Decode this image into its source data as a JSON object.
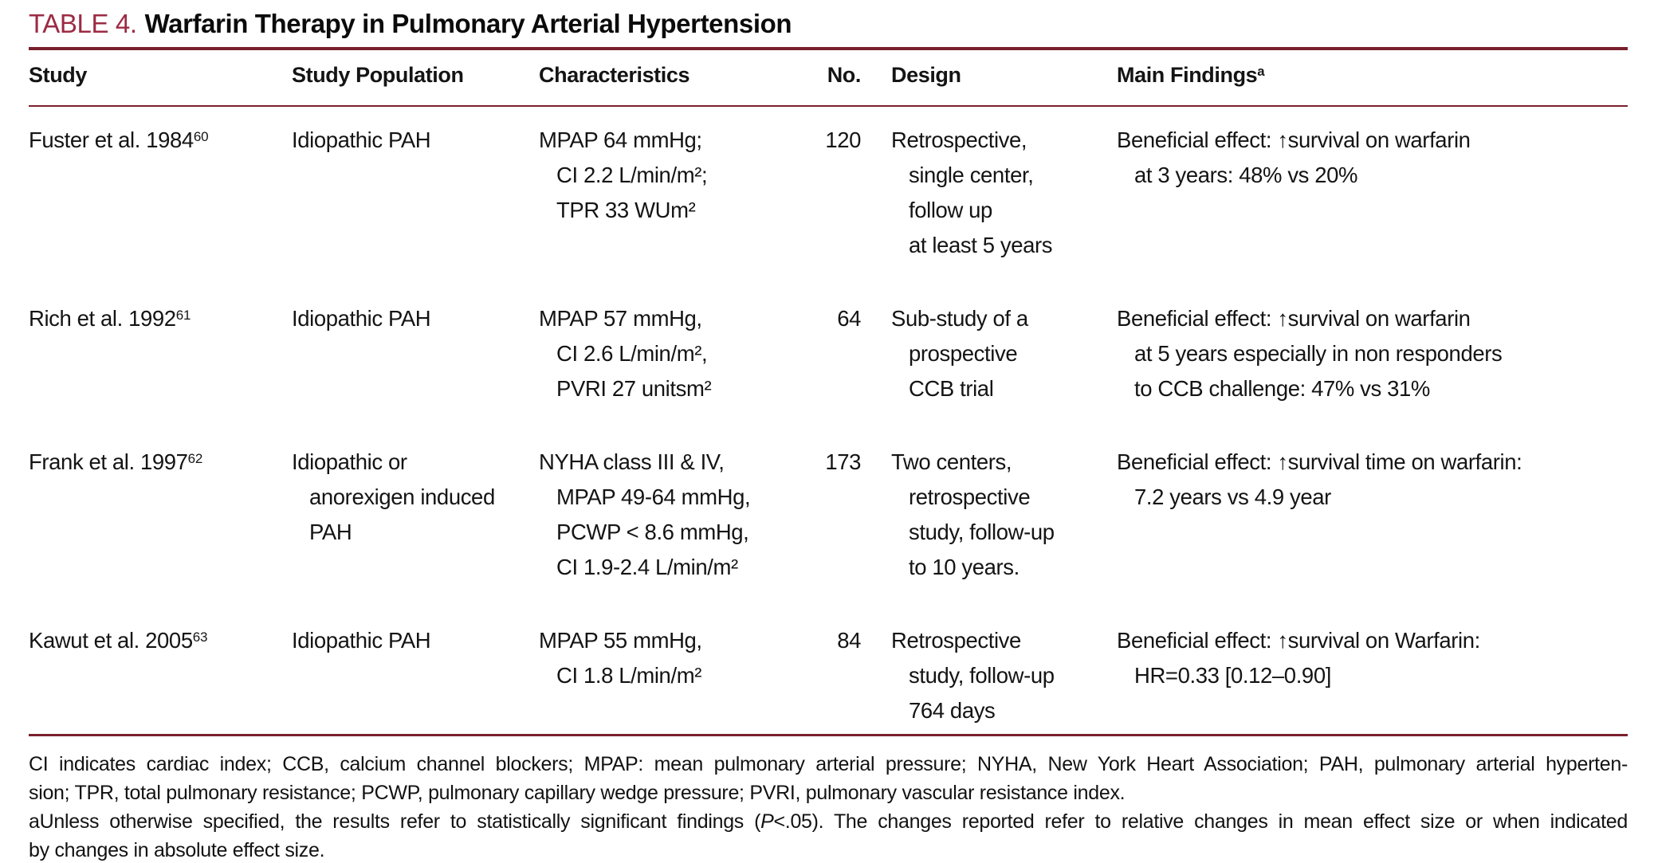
{
  "title": {
    "label": "TABLE 4.",
    "text": "Warfarin Therapy in Pulmonary Arterial Hypertension"
  },
  "colors": {
    "accent_title": "#9c2b43",
    "rule": "#7a1f2d",
    "text": "#141414"
  },
  "table": {
    "headers": {
      "study": "Study",
      "population": "Study Population",
      "characteristics": "Characteristics",
      "no": "No.",
      "design": "Design",
      "findings": "Main Findings",
      "findings_sup": "a"
    },
    "rows": [
      {
        "study": "Fuster et al. 1984",
        "ref": "60",
        "population": [
          "Idiopathic PAH"
        ],
        "characteristics": [
          "MPAP 64 mmHg;",
          "CI 2.2 L/min/m²;",
          "TPR 33 WUm²"
        ],
        "no": "120",
        "design": [
          "Retrospective,",
          "single center,",
          "follow up",
          "at least 5 years"
        ],
        "findings": [
          "Beneficial effect: ↑survival on warfarin",
          "at 3 years: 48% vs 20%"
        ]
      },
      {
        "study": "Rich et al. 1992",
        "ref": "61",
        "population": [
          "Idiopathic PAH"
        ],
        "characteristics": [
          "MPAP 57 mmHg,",
          "CI 2.6 L/min/m²,",
          "PVRI 27 unitsm²"
        ],
        "no": "64",
        "design": [
          "Sub-study of a",
          "prospective",
          "CCB trial"
        ],
        "findings": [
          "Beneficial effect: ↑survival on warfarin",
          "at 5 years especially in non responders",
          "to CCB challenge: 47% vs 31%"
        ]
      },
      {
        "study": "Frank et al. 1997",
        "ref": "62",
        "population": [
          "Idiopathic or",
          "anorexigen induced",
          "PAH"
        ],
        "characteristics": [
          "NYHA class III & IV,",
          "MPAP 49-64 mmHg,",
          "PCWP < 8.6 mmHg,",
          "CI 1.9-2.4 L/min/m²"
        ],
        "no": "173",
        "design": [
          "Two centers,",
          "retrospective",
          "study, follow-up",
          "to 10 years."
        ],
        "findings": [
          "Beneficial effect: ↑survival time on warfarin:",
          "7.2 years vs 4.9 year"
        ]
      },
      {
        "study": "Kawut et al. 2005",
        "ref": "63",
        "population": [
          "Idiopathic PAH"
        ],
        "characteristics": [
          "MPAP 55 mmHg,",
          "CI 1.8 L/min/m²"
        ],
        "no": "84",
        "design": [
          "Retrospective",
          "study, follow-up",
          "764 days"
        ],
        "findings": [
          "Beneficial effect: ↑survival on Warfarin:",
          "HR=0.33 [0.12–0.90]"
        ]
      }
    ]
  },
  "footnotes": {
    "abbrev_line1": "CI indicates cardiac index; CCB, calcium channel blockers; MPAP: mean pulmonary arterial pressure; NYHA, New York Heart Association; PAH, pulmonary arterial hyperten-",
    "abbrev_line2": "sion; TPR, total pulmonary resistance; PCWP, pulmonary capillary wedge pressure; PVRI, pulmonary vascular resistance index.",
    "note_a_seg1": "aUnless otherwise specified, the results refer to statistically significant findings (",
    "note_a_italic": "P",
    "note_a_seg2": "<.05). The changes reported refer to relative changes in mean effect size or when indicated",
    "note_a_line2": "by changes in absolute effect size."
  }
}
